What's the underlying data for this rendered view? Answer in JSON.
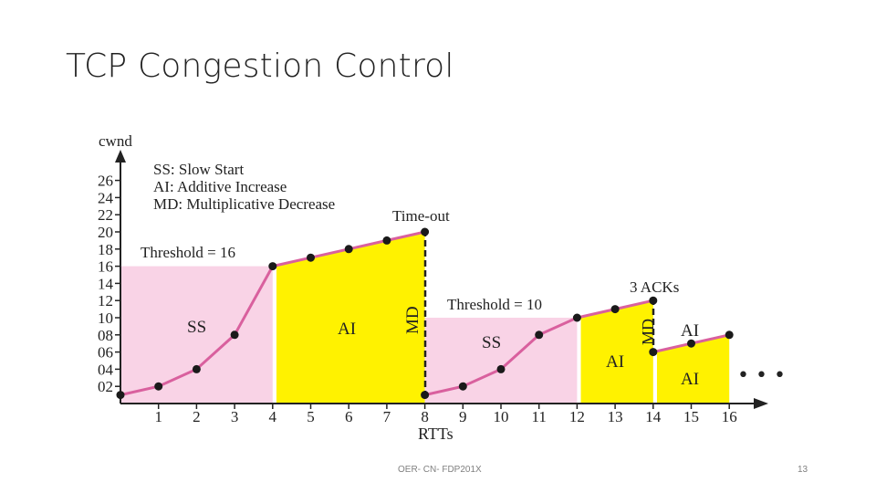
{
  "slide": {
    "title": "TCP Congestion Control",
    "footer_text": "OER- CN- FDP201X",
    "page_number": "13"
  },
  "colors": {
    "ss_region": "#f9d3e6",
    "ai_region": "#fff200",
    "curve": "#d9609e",
    "point": "#1a1a1a",
    "text": "#222222"
  },
  "figure": {
    "y_axis_title": "cwnd",
    "x_axis_title": "RTTs",
    "y_ticks": [
      "02",
      "04",
      "06",
      "08",
      "10",
      "12",
      "14",
      "16",
      "18",
      "20",
      "22",
      "24",
      "26"
    ],
    "x_ticks": [
      "1",
      "2",
      "3",
      "4",
      "5",
      "6",
      "7",
      "8",
      "9",
      "10",
      "11",
      "12",
      "13",
      "14",
      "15",
      "16"
    ],
    "legend": [
      "SS: Slow Start",
      "AI: Additive Increase",
      "MD: Multiplicative Decrease"
    ],
    "labels": {
      "threshold_1": "Threshold = 16",
      "threshold_2": "Threshold = 10",
      "timeout": "Time-out",
      "three_acks": "3 ACKs",
      "md": "MD",
      "ss": "SS",
      "ai": "AI",
      "ellipsis": "• • •"
    },
    "points": [
      {
        "x": 0,
        "y": 1
      },
      {
        "x": 1,
        "y": 2
      },
      {
        "x": 2,
        "y": 4
      },
      {
        "x": 3,
        "y": 8
      },
      {
        "x": 4,
        "y": 16
      },
      {
        "x": 5,
        "y": 17
      },
      {
        "x": 6,
        "y": 18
      },
      {
        "x": 7,
        "y": 19
      },
      {
        "x": 8,
        "y": 20
      },
      {
        "x": 8,
        "y": 1
      },
      {
        "x": 9,
        "y": 2
      },
      {
        "x": 10,
        "y": 4
      },
      {
        "x": 11,
        "y": 8
      },
      {
        "x": 12,
        "y": 10
      },
      {
        "x": 13,
        "y": 11
      },
      {
        "x": 14,
        "y": 12
      },
      {
        "x": 14,
        "y": 6
      },
      {
        "x": 15,
        "y": 7
      },
      {
        "x": 16,
        "y": 8
      }
    ]
  }
}
